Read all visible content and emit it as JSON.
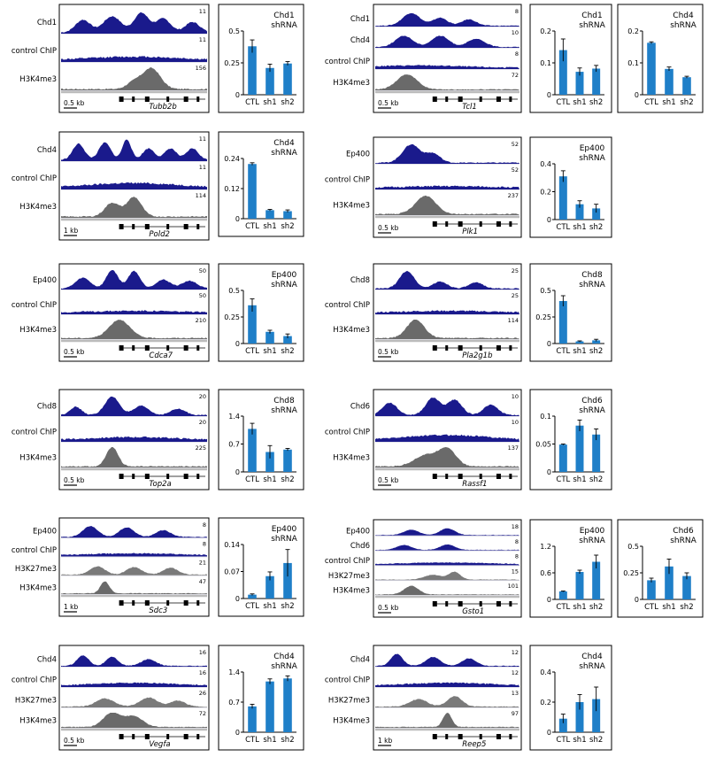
{
  "colors": {
    "chip": "#1a1a8c",
    "h3k4me3": "#6a6a6a",
    "h3k27me3": "#7a7a7a",
    "bar": "#1f7fc8",
    "axis": "#000000",
    "frame": "#000000"
  },
  "chart_data": [
    {
      "type": "bar",
      "title_line1": "Chd1",
      "title_line2": "shRNA",
      "categories": [
        "CTL",
        "sh1",
        "sh2"
      ],
      "values": [
        0.38,
        0.21,
        0.245
      ],
      "errors": [
        0.05,
        0.03,
        0.015
      ],
      "ylim": [
        0,
        0.5
      ],
      "yticks": [
        "0",
        "0.25",
        "0.5"
      ]
    },
    {
      "type": "bar",
      "title_line1": "Chd1",
      "title_line2": "shRNA",
      "categories": [
        "CTL",
        "sh1",
        "sh2"
      ],
      "values": [
        0.14,
        0.072,
        0.082
      ],
      "errors": [
        0.035,
        0.012,
        0.01
      ],
      "ylim": [
        0,
        0.2
      ],
      "yticks": [
        "0",
        "0.1",
        "0.2"
      ]
    },
    {
      "type": "bar",
      "title_line1": "Chd4",
      "title_line2": "shRNA",
      "categories": [
        "CTL",
        "sh1",
        "sh2"
      ],
      "values": [
        0.163,
        0.081,
        0.055
      ],
      "errors": [
        0.003,
        0.006,
        0.003
      ],
      "ylim": [
        0,
        0.2
      ],
      "yticks": [
        "0",
        "0.1",
        "0.2"
      ]
    },
    {
      "type": "bar",
      "title_line1": "Chd4",
      "title_line2": "shRNA",
      "categories": [
        "CTL",
        "sh1",
        "sh2"
      ],
      "values": [
        0.218,
        0.034,
        0.03
      ],
      "errors": [
        0.005,
        0.003,
        0.005
      ],
      "ylim": [
        0,
        0.24
      ],
      "yticks": [
        "0",
        "0.12",
        "0.24"
      ]
    },
    {
      "type": "bar",
      "title_line1": "Ep400",
      "title_line2": "shRNA",
      "categories": [
        "CTL",
        "sh1",
        "sh2"
      ],
      "values": [
        0.31,
        0.11,
        0.08
      ],
      "errors": [
        0.04,
        0.025,
        0.03
      ],
      "ylim": [
        0,
        0.4
      ],
      "yticks": [
        "0",
        "0.2",
        "0.4"
      ]
    },
    {
      "type": "bar",
      "title_line1": "Ep400",
      "title_line2": "shRNA",
      "categories": [
        "CTL",
        "sh1",
        "sh2"
      ],
      "values": [
        0.36,
        0.11,
        0.07
      ],
      "errors": [
        0.06,
        0.015,
        0.02
      ],
      "ylim": [
        0,
        0.5
      ],
      "yticks": [
        "0",
        "0.25",
        "0.5"
      ]
    },
    {
      "type": "bar",
      "title_line1": "Chd8",
      "title_line2": "shRNA",
      "categories": [
        "CTL",
        "sh1",
        "sh2"
      ],
      "values": [
        0.4,
        0.02,
        0.03
      ],
      "errors": [
        0.05,
        0.005,
        0.01
      ],
      "ylim": [
        0,
        0.5
      ],
      "yticks": [
        "0",
        "0.25",
        "0.5"
      ]
    },
    {
      "type": "bar",
      "title_line1": "Chd8",
      "title_line2": "shRNA",
      "categories": [
        "CTL",
        "sh1",
        "sh2"
      ],
      "values": [
        1.08,
        0.5,
        0.56
      ],
      "errors": [
        0.14,
        0.16,
        0.03
      ],
      "ylim": [
        0,
        1.4
      ],
      "yticks": [
        "0",
        "0.7",
        "1.4"
      ]
    },
    {
      "type": "bar",
      "title_line1": "Chd6",
      "title_line2": "shRNA",
      "categories": [
        "CTL",
        "sh1",
        "sh2"
      ],
      "values": [
        0.049,
        0.083,
        0.067
      ],
      "errors": [
        0.001,
        0.01,
        0.01
      ],
      "ylim": [
        0,
        0.1
      ],
      "yticks": [
        "0",
        "0.05",
        "0.1"
      ]
    },
    {
      "type": "bar",
      "title_line1": "Ep400",
      "title_line2": "shRNA",
      "categories": [
        "CTL",
        "sh1",
        "sh2"
      ],
      "values": [
        0.01,
        0.058,
        0.092
      ],
      "errors": [
        0.002,
        0.011,
        0.035
      ],
      "ylim": [
        0,
        0.14
      ],
      "yticks": [
        "0",
        "0.07",
        "0.14"
      ]
    },
    {
      "type": "bar",
      "title_line1": "Ep400",
      "title_line2": "shRNA",
      "categories": [
        "CTL",
        "sh1",
        "sh2"
      ],
      "values": [
        0.18,
        0.62,
        0.85
      ],
      "errors": [
        0.01,
        0.04,
        0.15
      ],
      "ylim": [
        0,
        1.2
      ],
      "yticks": [
        "0",
        "0.6",
        "1.2"
      ]
    },
    {
      "type": "bar",
      "title_line1": "Chd6",
      "title_line2": "shRNA",
      "categories": [
        "CTL",
        "sh1",
        "sh2"
      ],
      "values": [
        0.18,
        0.31,
        0.22
      ],
      "errors": [
        0.02,
        0.07,
        0.03
      ],
      "ylim": [
        0,
        0.5
      ],
      "yticks": [
        "0",
        "0.25",
        "0.5"
      ]
    },
    {
      "type": "bar",
      "title_line1": "Chd4",
      "title_line2": "shRNA",
      "categories": [
        "CTL",
        "sh1",
        "sh2"
      ],
      "values": [
        0.6,
        1.18,
        1.25
      ],
      "errors": [
        0.05,
        0.06,
        0.06
      ],
      "ylim": [
        0,
        1.4
      ],
      "yticks": [
        "0",
        "0.7",
        "1.4"
      ]
    },
    {
      "type": "bar",
      "title_line1": "Chd4",
      "title_line2": "shRNA",
      "categories": [
        "CTL",
        "sh1",
        "sh2"
      ],
      "values": [
        0.09,
        0.2,
        0.22
      ],
      "errors": [
        0.03,
        0.05,
        0.08
      ],
      "ylim": [
        0,
        0.4
      ],
      "yticks": [
        "0",
        "0.2",
        "0.4"
      ]
    }
  ],
  "tracks": [
    {
      "gene": "Tubb2b",
      "scale": "0.5 kb",
      "rows": [
        {
          "label": "Chd1",
          "max": "11",
          "kind": "chip"
        },
        {
          "label": "control ChIP",
          "max": "11",
          "kind": "ctrl"
        },
        {
          "label": "H3K4me3",
          "max": "156",
          "kind": "k4"
        }
      ]
    },
    {
      "gene": "Tcl1",
      "scale": "0.5 kb",
      "rows": [
        {
          "label": "Chd1",
          "max": "8",
          "kind": "chip"
        },
        {
          "label": "Chd4",
          "max": "10",
          "kind": "chip"
        },
        {
          "label": "control ChIP",
          "max": "8",
          "kind": "ctrl"
        },
        {
          "label": "H3K4me3",
          "max": "72",
          "kind": "k4"
        }
      ]
    },
    {
      "gene": "Pold2",
      "scale": "1 kb",
      "rows": [
        {
          "label": "Chd4",
          "max": "11",
          "kind": "chip"
        },
        {
          "label": "control ChIP",
          "max": "11",
          "kind": "ctrl"
        },
        {
          "label": "H3K4me3",
          "max": "114",
          "kind": "k4"
        }
      ]
    },
    {
      "gene": "Plk1",
      "scale": "0.5 kb",
      "rows": [
        {
          "label": "Ep400",
          "max": "52",
          "kind": "chip"
        },
        {
          "label": "control ChIP",
          "max": "52",
          "kind": "ctrl"
        },
        {
          "label": "H3K4me3",
          "max": "237",
          "kind": "k4"
        }
      ]
    },
    {
      "gene": "Cdca7",
      "scale": "0.5 kb",
      "rows": [
        {
          "label": "Ep400",
          "max": "50",
          "kind": "chip"
        },
        {
          "label": "control ChIP",
          "max": "50",
          "kind": "ctrl"
        },
        {
          "label": "H3K4me3",
          "max": "210",
          "kind": "k4"
        }
      ]
    },
    {
      "gene": "Pla2g1b",
      "scale": "0.5 kb",
      "rows": [
        {
          "label": "Chd8",
          "max": "25",
          "kind": "chip"
        },
        {
          "label": "control ChIP",
          "max": "25",
          "kind": "ctrl"
        },
        {
          "label": "H3K4me3",
          "max": "114",
          "kind": "k4"
        }
      ]
    },
    {
      "gene": "Top2a",
      "scale": "0.5 kb",
      "rows": [
        {
          "label": "Chd8",
          "max": "20",
          "kind": "chip"
        },
        {
          "label": "control ChIP",
          "max": "20",
          "kind": "ctrl"
        },
        {
          "label": "H3K4me3",
          "max": "225",
          "kind": "k4"
        }
      ]
    },
    {
      "gene": "Rassf1",
      "scale": "0.5 kb",
      "rows": [
        {
          "label": "Chd6",
          "max": "10",
          "kind": "chip"
        },
        {
          "label": "control ChIP",
          "max": "10",
          "kind": "ctrl"
        },
        {
          "label": "H3K4me3",
          "max": "137",
          "kind": "k4"
        }
      ]
    },
    {
      "gene": "Sdc3",
      "scale": "1 kb",
      "rows": [
        {
          "label": "Ep400",
          "max": "8",
          "kind": "chip"
        },
        {
          "label": "control ChIP",
          "max": "8",
          "kind": "ctrl"
        },
        {
          "label": "H3K27me3",
          "max": "21",
          "kind": "k27"
        },
        {
          "label": "H3K4me3",
          "max": "47",
          "kind": "k4"
        }
      ]
    },
    {
      "gene": "Gsto1",
      "scale": "0.5 kb",
      "rows": [
        {
          "label": "Ep400",
          "max": "18",
          "kind": "chip"
        },
        {
          "label": "Chd6",
          "max": "8",
          "kind": "chip"
        },
        {
          "label": "control ChIP",
          "max": "8",
          "kind": "ctrl"
        },
        {
          "label": "H3K27me3",
          "max": "15",
          "kind": "k27"
        },
        {
          "label": "H3K4me3",
          "max": "101",
          "kind": "k4"
        }
      ]
    },
    {
      "gene": "Vegfa",
      "scale": "0.5 kb",
      "rows": [
        {
          "label": "Chd4",
          "max": "16",
          "kind": "chip"
        },
        {
          "label": "control ChIP",
          "max": "16",
          "kind": "ctrl"
        },
        {
          "label": "H3K27me3",
          "max": "26",
          "kind": "k27"
        },
        {
          "label": "H3K4me3",
          "max": "72",
          "kind": "k4"
        }
      ]
    },
    {
      "gene": "Reep5",
      "scale": "1 kb",
      "rows": [
        {
          "label": "Chd4",
          "max": "12",
          "kind": "chip"
        },
        {
          "label": "control ChIP",
          "max": "12",
          "kind": "ctrl"
        },
        {
          "label": "H3K27me3",
          "max": "13",
          "kind": "k27"
        },
        {
          "label": "H3K4me3",
          "max": "97",
          "kind": "k4"
        }
      ]
    }
  ]
}
